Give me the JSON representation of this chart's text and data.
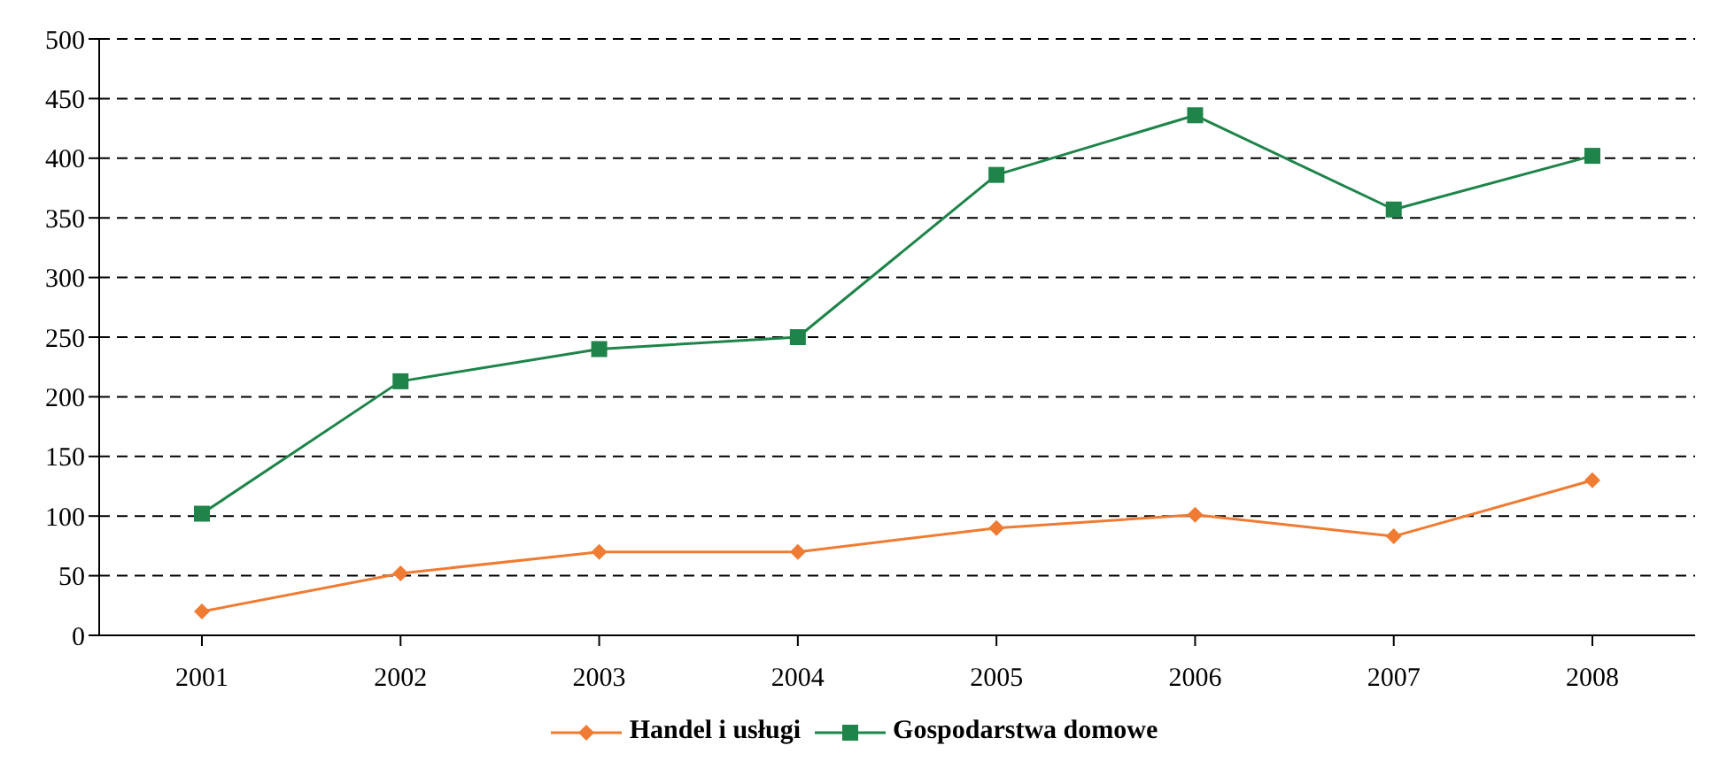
{
  "chart_data": {
    "type": "line",
    "categories": [
      "2001",
      "2002",
      "2003",
      "2004",
      "2005",
      "2006",
      "2007",
      "2008"
    ],
    "series": [
      {
        "name": "Handel i usługi",
        "color": "#f07b32",
        "marker": "diamond",
        "values": [
          20,
          52,
          70,
          70,
          90,
          101,
          83,
          130
        ]
      },
      {
        "name": "Gospodarstwa domowe",
        "color": "#1e8449",
        "marker": "square",
        "values": [
          102,
          213,
          240,
          250,
          386,
          436,
          357,
          402
        ]
      }
    ],
    "ylim": [
      0,
      500
    ],
    "yticks": [
      0,
      50,
      100,
      150,
      200,
      250,
      300,
      350,
      400,
      450,
      500
    ],
    "grid": "y",
    "legend": "bottom",
    "line_style": "solid"
  }
}
